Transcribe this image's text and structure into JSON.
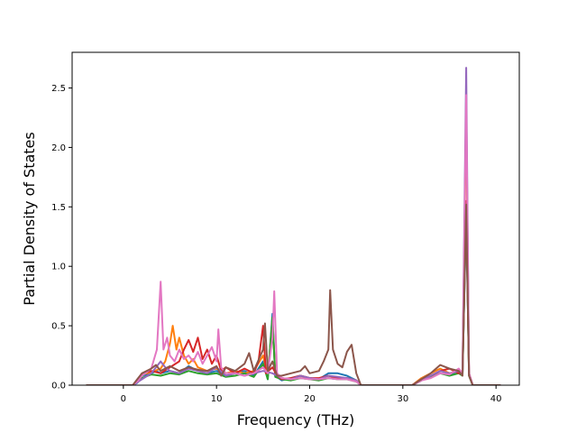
{
  "chart_data": {
    "type": "line",
    "title": "",
    "xlabel": "Frequency (THz)",
    "ylabel": "Partial Density of States",
    "xlim": [
      -5.5,
      42.5
    ],
    "ylim": [
      0,
      2.8
    ],
    "xticks": [
      0,
      10,
      20,
      30,
      40
    ],
    "xtick_labels": [
      "0",
      "10",
      "20",
      "30",
      "40"
    ],
    "yticks": [
      0,
      0.5,
      1.0,
      1.5,
      2.0,
      2.5
    ],
    "ytick_labels": [
      "0.0",
      "0.5",
      "1.0",
      "1.5",
      "2.0",
      "2.5"
    ],
    "grid": false,
    "legend": "none",
    "series": [
      {
        "color": "#1f77b4",
        "points": [
          [
            -4,
            0
          ],
          [
            1,
            0
          ],
          [
            1.5,
            0.02
          ],
          [
            2,
            0.08
          ],
          [
            3,
            0.1
          ],
          [
            3.5,
            0.12
          ],
          [
            4,
            0.1
          ],
          [
            5,
            0.12
          ],
          [
            6,
            0.1
          ],
          [
            7,
            0.16
          ],
          [
            8,
            0.12
          ],
          [
            9,
            0.1
          ],
          [
            10,
            0.12
          ],
          [
            11,
            0.08
          ],
          [
            12,
            0.1
          ],
          [
            13,
            0.12
          ],
          [
            14,
            0.08
          ],
          [
            15,
            0.2
          ],
          [
            15.5,
            0.05
          ],
          [
            16,
            0.6
          ],
          [
            16.3,
            0.08
          ],
          [
            17,
            0.04
          ],
          [
            18,
            0.06
          ],
          [
            19,
            0.08
          ],
          [
            20,
            0.06
          ],
          [
            21,
            0.05
          ],
          [
            22,
            0.1
          ],
          [
            23,
            0.1
          ],
          [
            24,
            0.08
          ],
          [
            25,
            0.04
          ],
          [
            25.5,
            0
          ],
          [
            31,
            0
          ],
          [
            31.5,
            0.02
          ],
          [
            32,
            0.05
          ],
          [
            33,
            0.08
          ],
          [
            34,
            0.1
          ],
          [
            35,
            0.09
          ],
          [
            36,
            0.12
          ],
          [
            36.4,
            0.1
          ],
          [
            36.8,
            1.45
          ],
          [
            37.1,
            0.1
          ],
          [
            37.5,
            0
          ],
          [
            40.5,
            0
          ]
        ]
      },
      {
        "color": "#ff7f0e",
        "points": [
          [
            -4,
            0
          ],
          [
            1,
            0
          ],
          [
            1.5,
            0.03
          ],
          [
            2,
            0.09
          ],
          [
            3,
            0.11
          ],
          [
            4,
            0.14
          ],
          [
            4.5,
            0.2
          ],
          [
            5,
            0.35
          ],
          [
            5.3,
            0.5
          ],
          [
            5.7,
            0.3
          ],
          [
            6,
            0.4
          ],
          [
            6.5,
            0.25
          ],
          [
            7,
            0.18
          ],
          [
            7.5,
            0.22
          ],
          [
            8,
            0.15
          ],
          [
            9,
            0.12
          ],
          [
            10,
            0.14
          ],
          [
            11,
            0.1
          ],
          [
            12,
            0.12
          ],
          [
            13,
            0.1
          ],
          [
            14,
            0.12
          ],
          [
            15,
            0.25
          ],
          [
            15.5,
            0.08
          ],
          [
            16,
            0.55
          ],
          [
            16.3,
            0.1
          ],
          [
            17,
            0.06
          ],
          [
            18,
            0.05
          ],
          [
            19,
            0.08
          ],
          [
            20,
            0.06
          ],
          [
            21,
            0.05
          ],
          [
            22,
            0.08
          ],
          [
            23,
            0.06
          ],
          [
            24,
            0.06
          ],
          [
            25,
            0.04
          ],
          [
            25.5,
            0
          ],
          [
            31,
            0
          ],
          [
            31.5,
            0.03
          ],
          [
            32,
            0.06
          ],
          [
            33,
            0.1
          ],
          [
            34,
            0.14
          ],
          [
            35,
            0.1
          ],
          [
            36,
            0.12
          ],
          [
            36.4,
            0.1
          ],
          [
            36.8,
            2.32
          ],
          [
            37.1,
            0.1
          ],
          [
            37.5,
            0
          ],
          [
            40.5,
            0
          ]
        ]
      },
      {
        "color": "#2ca02c",
        "points": [
          [
            -4,
            0
          ],
          [
            1,
            0
          ],
          [
            2,
            0.06
          ],
          [
            3,
            0.09
          ],
          [
            4,
            0.08
          ],
          [
            5,
            0.1
          ],
          [
            6,
            0.09
          ],
          [
            7,
            0.12
          ],
          [
            8,
            0.1
          ],
          [
            9,
            0.09
          ],
          [
            10,
            0.1
          ],
          [
            11,
            0.07
          ],
          [
            12,
            0.08
          ],
          [
            13,
            0.1
          ],
          [
            14,
            0.07
          ],
          [
            15,
            0.18
          ],
          [
            15.5,
            0.05
          ],
          [
            16,
            0.57
          ],
          [
            16.3,
            0.07
          ],
          [
            17,
            0.05
          ],
          [
            18,
            0.04
          ],
          [
            19,
            0.06
          ],
          [
            20,
            0.05
          ],
          [
            21,
            0.04
          ],
          [
            22,
            0.06
          ],
          [
            23,
            0.05
          ],
          [
            24,
            0.05
          ],
          [
            25,
            0.03
          ],
          [
            25.5,
            0
          ],
          [
            31,
            0
          ],
          [
            32,
            0.04
          ],
          [
            33,
            0.07
          ],
          [
            34,
            0.1
          ],
          [
            35,
            0.08
          ],
          [
            36,
            0.1
          ],
          [
            36.4,
            0.08
          ],
          [
            36.8,
            1.5
          ],
          [
            37.1,
            0.08
          ],
          [
            37.5,
            0
          ],
          [
            40.5,
            0
          ]
        ]
      },
      {
        "color": "#d62728",
        "points": [
          [
            -4,
            0
          ],
          [
            1,
            0
          ],
          [
            1.5,
            0.04
          ],
          [
            2,
            0.1
          ],
          [
            3,
            0.12
          ],
          [
            4,
            0.1
          ],
          [
            5,
            0.15
          ],
          [
            6,
            0.2
          ],
          [
            6.5,
            0.3
          ],
          [
            7,
            0.38
          ],
          [
            7.5,
            0.28
          ],
          [
            8,
            0.4
          ],
          [
            8.5,
            0.22
          ],
          [
            9,
            0.3
          ],
          [
            9.5,
            0.18
          ],
          [
            10,
            0.25
          ],
          [
            10.5,
            0.12
          ],
          [
            11,
            0.15
          ],
          [
            12,
            0.1
          ],
          [
            13,
            0.14
          ],
          [
            14,
            0.1
          ],
          [
            14.5,
            0.2
          ],
          [
            15,
            0.5
          ],
          [
            15.3,
            0.1
          ],
          [
            16,
            0.15
          ],
          [
            16.5,
            0.08
          ],
          [
            17,
            0.05
          ],
          [
            18,
            0.06
          ],
          [
            19,
            0.08
          ],
          [
            20,
            0.06
          ],
          [
            21,
            0.06
          ],
          [
            22,
            0.08
          ],
          [
            23,
            0.06
          ],
          [
            24,
            0.06
          ],
          [
            25,
            0.04
          ],
          [
            25.5,
            0
          ],
          [
            31,
            0
          ],
          [
            32,
            0.05
          ],
          [
            33,
            0.08
          ],
          [
            34,
            0.12
          ],
          [
            35,
            0.14
          ],
          [
            36,
            0.1
          ],
          [
            36.4,
            0.1
          ],
          [
            36.8,
            1.55
          ],
          [
            37.1,
            0.1
          ],
          [
            37.5,
            0
          ],
          [
            40.5,
            0
          ]
        ]
      },
      {
        "color": "#9467bd",
        "points": [
          [
            -4,
            0
          ],
          [
            1,
            0
          ],
          [
            2,
            0.05
          ],
          [
            3,
            0.1
          ],
          [
            3.5,
            0.15
          ],
          [
            4,
            0.2
          ],
          [
            4.5,
            0.15
          ],
          [
            5,
            0.12
          ],
          [
            6,
            0.1
          ],
          [
            7,
            0.14
          ],
          [
            8,
            0.12
          ],
          [
            9,
            0.1
          ],
          [
            10,
            0.15
          ],
          [
            11,
            0.08
          ],
          [
            12,
            0.1
          ],
          [
            13,
            0.08
          ],
          [
            14,
            0.1
          ],
          [
            15,
            0.12
          ],
          [
            16,
            0.1
          ],
          [
            17,
            0.06
          ],
          [
            18,
            0.05
          ],
          [
            19,
            0.08
          ],
          [
            20,
            0.06
          ],
          [
            21,
            0.05
          ],
          [
            22,
            0.08
          ],
          [
            23,
            0.07
          ],
          [
            24,
            0.06
          ],
          [
            25,
            0.04
          ],
          [
            25.5,
            0
          ],
          [
            31,
            0
          ],
          [
            32,
            0.04
          ],
          [
            33,
            0.08
          ],
          [
            34,
            0.12
          ],
          [
            35,
            0.1
          ],
          [
            36,
            0.12
          ],
          [
            36.4,
            0.1
          ],
          [
            36.8,
            2.67
          ],
          [
            37.1,
            0.1
          ],
          [
            37.5,
            0
          ],
          [
            40.5,
            0
          ]
        ]
      },
      {
        "color": "#e377c2",
        "points": [
          [
            -4,
            0
          ],
          [
            1,
            0
          ],
          [
            1.5,
            0.03
          ],
          [
            2,
            0.08
          ],
          [
            3,
            0.14
          ],
          [
            3.6,
            0.3
          ],
          [
            4,
            0.87
          ],
          [
            4.3,
            0.3
          ],
          [
            4.7,
            0.4
          ],
          [
            5,
            0.25
          ],
          [
            5.5,
            0.2
          ],
          [
            6,
            0.3
          ],
          [
            6.5,
            0.22
          ],
          [
            7,
            0.25
          ],
          [
            7.5,
            0.2
          ],
          [
            8,
            0.28
          ],
          [
            8.5,
            0.18
          ],
          [
            9,
            0.25
          ],
          [
            9.5,
            0.32
          ],
          [
            10,
            0.2
          ],
          [
            10.2,
            0.47
          ],
          [
            10.5,
            0.15
          ],
          [
            11,
            0.1
          ],
          [
            12,
            0.1
          ],
          [
            13,
            0.08
          ],
          [
            14,
            0.1
          ],
          [
            15,
            0.15
          ],
          [
            15.5,
            0.1
          ],
          [
            16,
            0.4
          ],
          [
            16.2,
            0.79
          ],
          [
            16.5,
            0.1
          ],
          [
            17,
            0.06
          ],
          [
            18,
            0.05
          ],
          [
            19,
            0.06
          ],
          [
            20,
            0.05
          ],
          [
            21,
            0.05
          ],
          [
            22,
            0.06
          ],
          [
            23,
            0.05
          ],
          [
            24,
            0.05
          ],
          [
            25,
            0.03
          ],
          [
            25.5,
            0
          ],
          [
            31,
            0
          ],
          [
            32,
            0.04
          ],
          [
            33,
            0.06
          ],
          [
            34,
            0.1
          ],
          [
            35,
            0.09
          ],
          [
            36,
            0.14
          ],
          [
            36.4,
            0.1
          ],
          [
            36.8,
            2.44
          ],
          [
            37.1,
            0.1
          ],
          [
            37.5,
            0
          ],
          [
            40.5,
            0
          ]
        ]
      },
      {
        "color": "#8c564b",
        "points": [
          [
            -4,
            0
          ],
          [
            1,
            0
          ],
          [
            1.5,
            0.05
          ],
          [
            2,
            0.1
          ],
          [
            3,
            0.14
          ],
          [
            3.5,
            0.17
          ],
          [
            4,
            0.12
          ],
          [
            5,
            0.16
          ],
          [
            6,
            0.12
          ],
          [
            7,
            0.15
          ],
          [
            8,
            0.13
          ],
          [
            9,
            0.12
          ],
          [
            10,
            0.16
          ],
          [
            10.5,
            0.08
          ],
          [
            11,
            0.15
          ],
          [
            12,
            0.12
          ],
          [
            13,
            0.18
          ],
          [
            13.5,
            0.27
          ],
          [
            14,
            0.12
          ],
          [
            15,
            0.3
          ],
          [
            15.2,
            0.52
          ],
          [
            15.5,
            0.12
          ],
          [
            16,
            0.2
          ],
          [
            16.5,
            0.08
          ],
          [
            17,
            0.08
          ],
          [
            18,
            0.1
          ],
          [
            19,
            0.12
          ],
          [
            19.5,
            0.16
          ],
          [
            20,
            0.1
          ],
          [
            21,
            0.12
          ],
          [
            21.5,
            0.2
          ],
          [
            22,
            0.3
          ],
          [
            22.2,
            0.8
          ],
          [
            22.5,
            0.3
          ],
          [
            23,
            0.18
          ],
          [
            23.5,
            0.15
          ],
          [
            24,
            0.28
          ],
          [
            24.5,
            0.34
          ],
          [
            25,
            0.1
          ],
          [
            25.5,
            0
          ],
          [
            31,
            0
          ],
          [
            32,
            0.05
          ],
          [
            33,
            0.1
          ],
          [
            34,
            0.17
          ],
          [
            35,
            0.14
          ],
          [
            36,
            0.12
          ],
          [
            36.4,
            0.08
          ],
          [
            36.8,
            1.52
          ],
          [
            37.1,
            0.08
          ],
          [
            37.5,
            0
          ],
          [
            40.5,
            0
          ]
        ]
      }
    ]
  }
}
